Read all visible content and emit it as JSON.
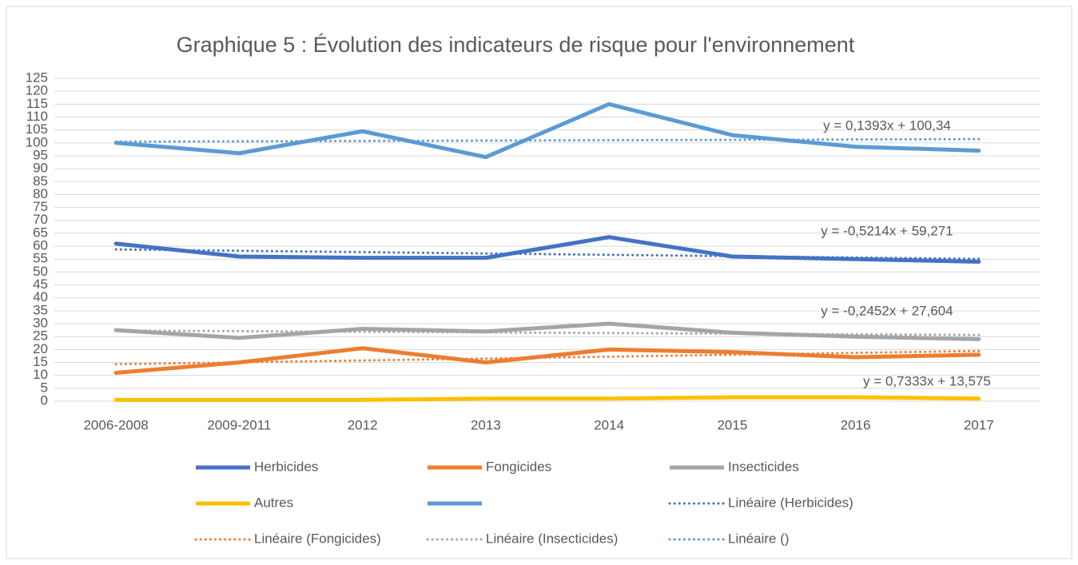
{
  "chart_data": {
    "type": "line",
    "title": "Graphique 5 : Évolution des indicateurs de risque pour l'environnement",
    "categories": [
      "2006-2008",
      "2009-2011",
      "2012",
      "2013",
      "2014",
      "2015",
      "2016",
      "2017"
    ],
    "ylim": [
      0,
      125
    ],
    "yticks": [
      0,
      5,
      10,
      15,
      20,
      25,
      30,
      35,
      40,
      45,
      50,
      55,
      60,
      65,
      70,
      75,
      80,
      85,
      90,
      95,
      100,
      105,
      110,
      115,
      120,
      125
    ],
    "grid": true,
    "series": [
      {
        "name": "Herbicides",
        "color": "#4472c4",
        "values": [
          61,
          56,
          55.5,
          55.5,
          63.5,
          56,
          55,
          54
        ]
      },
      {
        "name": "Fongicides",
        "color": "#ed7d31",
        "values": [
          11,
          15,
          20.5,
          15,
          20,
          19,
          17,
          18
        ]
      },
      {
        "name": "Insecticides",
        "color": "#a5a5a5",
        "values": [
          27.5,
          24.5,
          28,
          27,
          30,
          26.5,
          25,
          24
        ]
      },
      {
        "name": "Autres",
        "color": "#ffc000",
        "values": [
          0.5,
          0.5,
          0.5,
          1,
          1,
          1.5,
          1.5,
          1
        ]
      },
      {
        "name": null,
        "color": "#5b9bd5",
        "values": [
          100,
          96,
          104.5,
          94.5,
          115,
          103,
          98.5,
          97
        ]
      }
    ],
    "trendlines": [
      {
        "name": "Linéaire (Herbicides)",
        "color": "#4472c4",
        "values": [
          58.75,
          58.23,
          57.71,
          57.19,
          56.66,
          56.14,
          55.62,
          55.1
        ]
      },
      {
        "name": "Linéaire (Fongicides)",
        "color": "#ed7d31",
        "values": [
          14.31,
          15.04,
          15.77,
          16.51,
          17.24,
          17.97,
          18.71,
          19.44
        ]
      },
      {
        "name": "Linéaire (Insecticides)",
        "color": "#a5a5a5",
        "values": [
          27.36,
          27.11,
          26.87,
          26.62,
          26.38,
          26.13,
          25.89,
          25.64
        ]
      },
      {
        "name": "Linéaire ()",
        "color": "#5b9bd5",
        "values": [
          100.48,
          100.62,
          100.76,
          100.9,
          101.04,
          101.18,
          101.32,
          101.45
        ]
      }
    ],
    "annotations": [
      "y = 0,1393x + 100,34",
      "y = -0,5214x + 59,271",
      "y = -0,2452x + 27,604",
      "y = 0,7333x + 13,575"
    ]
  }
}
